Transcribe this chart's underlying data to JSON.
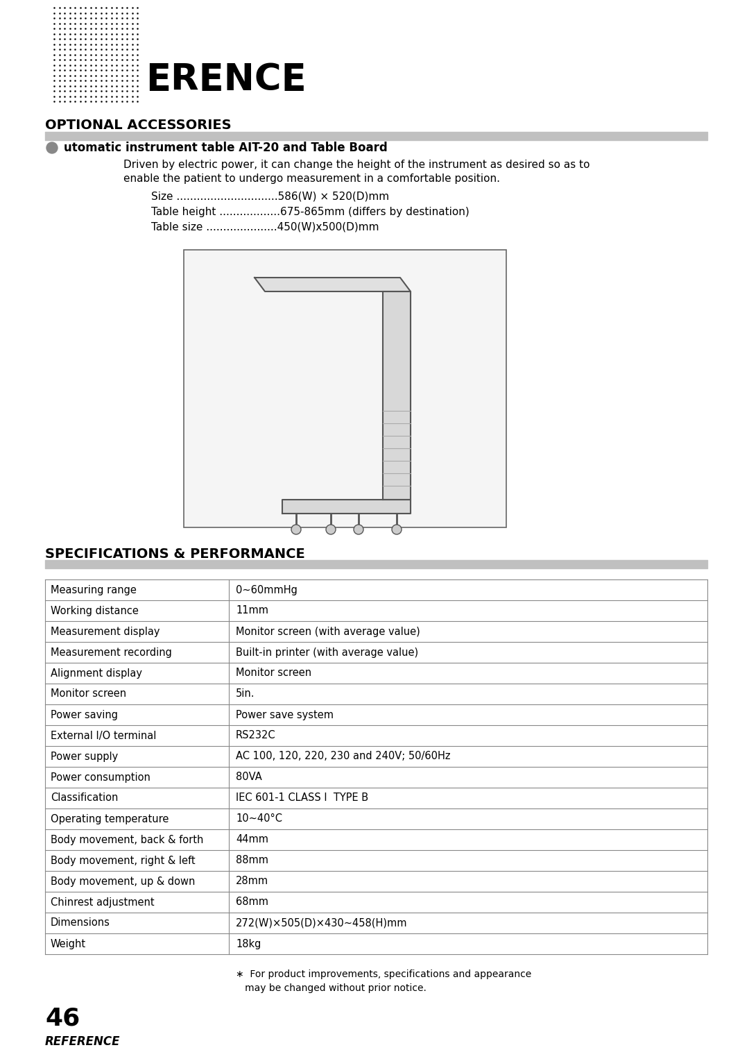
{
  "page_bg": "#ffffff",
  "header_text": "ERENCE",
  "section1_title": "OPTIONAL ACCESSORIES",
  "bullet_title": "utomatic instrument table AIT-20 and Table Board",
  "bullet_body_line1": "Driven by electric power, it can change the height of the instrument as desired so as to",
  "bullet_body_line2": "enable the patient to undergo measurement in a comfortable position.",
  "bullet_specs": [
    "Size ..............................586(W) × 520(D)mm",
    "Table height ..................675-865mm (differs by destination)",
    "Table size .....................450(W)x500(D)mm"
  ],
  "section2_title": "SPECIFICATIONS & PERFORMANCE",
  "table_rows": [
    [
      "Measuring range",
      "0~60mmHg"
    ],
    [
      "Working distance",
      "11mm"
    ],
    [
      "Measurement display",
      "Monitor screen (with average value)"
    ],
    [
      "Measurement recording",
      "Built-in printer (with average value)"
    ],
    [
      "Alignment display",
      "Monitor screen"
    ],
    [
      "Monitor screen",
      "5in."
    ],
    [
      "Power saving",
      "Power save system"
    ],
    [
      "External I/O terminal",
      "RS232C"
    ],
    [
      "Power supply",
      "AC 100, 120, 220, 230 and 240V; 50/60Hz"
    ],
    [
      "Power consumption",
      "80VA"
    ],
    [
      "Classification",
      "IEC 601-1 CLASS I  TYPE B"
    ],
    [
      "Operating temperature",
      "10~40°C"
    ],
    [
      "Body movement, back & forth",
      "44mm"
    ],
    [
      "Body movement, right & left",
      "88mm"
    ],
    [
      "Body movement, up & down",
      "28mm"
    ],
    [
      "Chinrest adjustment",
      "68mm"
    ],
    [
      "Dimensions",
      "272(W)×505(D)×430~458(H)mm"
    ],
    [
      "Weight",
      "18kg"
    ]
  ],
  "footnote_line1": "∗  For product improvements, specifications and appearance",
  "footnote_line2": "   may be changed without prior notice.",
  "page_number": "46",
  "page_label": "REFERENCE"
}
